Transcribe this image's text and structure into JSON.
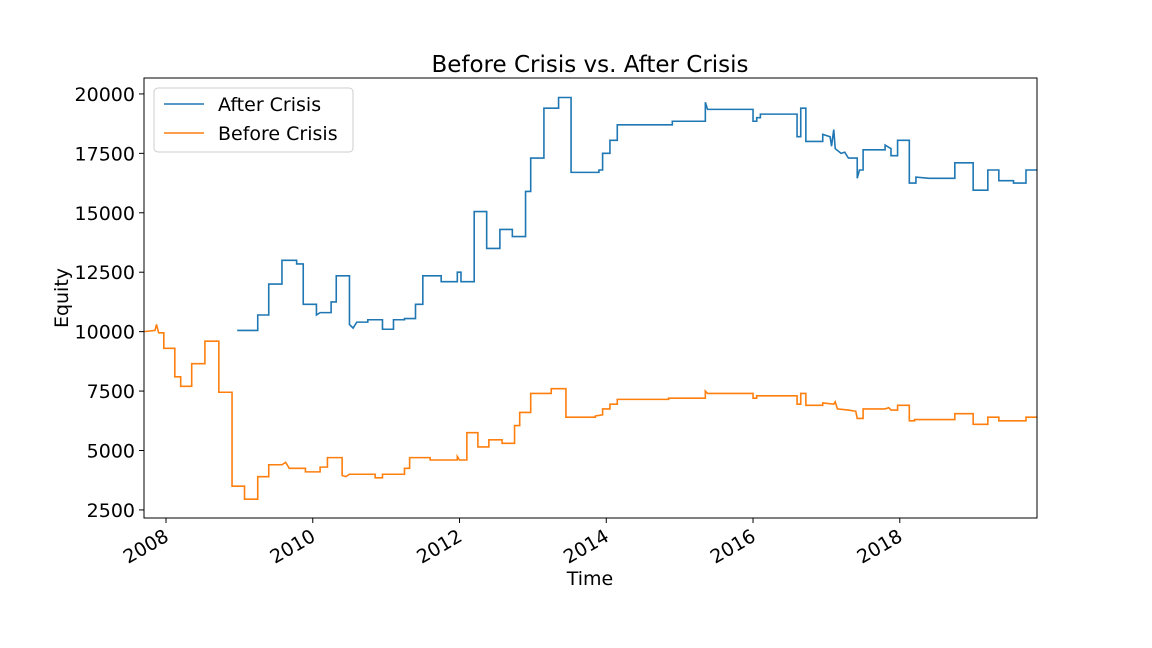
{
  "chart_data": {
    "type": "line",
    "title": "Before Crisis vs. After Crisis",
    "xlabel": "Time",
    "ylabel": "Equity",
    "xlim": [
      2007.7,
      2019.87
    ],
    "ylim": [
      2160,
      20670
    ],
    "xticks": [
      2008,
      2010,
      2012,
      2014,
      2016,
      2018
    ],
    "yticks": [
      2500,
      5000,
      7500,
      10000,
      12500,
      15000,
      17500,
      20000
    ],
    "grid": false,
    "legend": "upper left",
    "series": [
      {
        "name": "After Crisis",
        "color": "#1f77b4",
        "x": [
          2008.97,
          2009.25,
          2009.25,
          2009.4,
          2009.4,
          2009.58,
          2009.58,
          2009.78,
          2009.78,
          2009.87,
          2009.87,
          2010.05,
          2010.05,
          2010.1,
          2010.25,
          2010.25,
          2010.32,
          2010.32,
          2010.5,
          2010.5,
          2010.55,
          2010.6,
          2010.75,
          2010.75,
          2010.95,
          2010.95,
          2011.1,
          2011.1,
          2011.25,
          2011.25,
          2011.4,
          2011.4,
          2011.5,
          2011.5,
          2011.75,
          2011.75,
          2011.97,
          2011.97,
          2012.02,
          2012.02,
          2012.2,
          2012.2,
          2012.37,
          2012.37,
          2012.55,
          2012.55,
          2012.72,
          2012.72,
          2012.9,
          2012.9,
          2012.97,
          2012.97,
          2013.15,
          2013.15,
          2013.35,
          2013.35,
          2013.52,
          2013.52,
          2013.9,
          2013.9,
          2013.95,
          2013.95,
          2014.05,
          2014.05,
          2014.15,
          2014.15,
          2014.9,
          2014.9,
          2015.35,
          2015.35,
          2015.38,
          2016.0,
          2016.0,
          2016.05,
          2016.05,
          2016.1,
          2016.1,
          2016.6,
          2016.6,
          2016.65,
          2016.65,
          2016.72,
          2016.72,
          2016.95,
          2016.95,
          2017.05,
          2017.07,
          2017.1,
          2017.12,
          2017.2,
          2017.25,
          2017.3,
          2017.42,
          2017.42,
          2017.45,
          2017.5,
          2017.5,
          2017.8,
          2017.8,
          2017.88,
          2017.88,
          2017.97,
          2017.97,
          2018.13,
          2018.13,
          2018.22,
          2018.22,
          2018.4,
          2018.75,
          2018.75,
          2019.0,
          2019.0,
          2019.2,
          2019.2,
          2019.35,
          2019.35,
          2019.55,
          2019.55,
          2019.72,
          2019.72,
          2019.87
        ],
        "values": [
          10050,
          10050,
          10700,
          10700,
          12000,
          12000,
          13000,
          13000,
          12850,
          12850,
          11150,
          11150,
          10700,
          10800,
          10800,
          11250,
          11250,
          12350,
          12350,
          10300,
          10150,
          10400,
          10400,
          10500,
          10500,
          10100,
          10100,
          10500,
          10500,
          10550,
          10550,
          11150,
          11150,
          12350,
          12350,
          12100,
          12100,
          12500,
          12500,
          12100,
          12100,
          15050,
          15050,
          13500,
          13500,
          14300,
          14300,
          14000,
          14000,
          15900,
          15900,
          17300,
          17300,
          19400,
          19400,
          19850,
          19850,
          16700,
          16700,
          16800,
          16800,
          17500,
          17500,
          18050,
          18050,
          18700,
          18700,
          18850,
          18850,
          19650,
          19350,
          19350,
          18850,
          18850,
          19000,
          19000,
          19150,
          19150,
          18200,
          18200,
          19400,
          19400,
          18000,
          18000,
          18300,
          18200,
          17800,
          18500,
          17700,
          17500,
          17550,
          17300,
          17300,
          16450,
          16800,
          16800,
          17650,
          17650,
          17850,
          17700,
          17400,
          17400,
          18050,
          18050,
          16250,
          16250,
          16500,
          16450,
          16450,
          17100,
          17100,
          15950,
          15950,
          16800,
          16800,
          16350,
          16350,
          16250,
          16250,
          16800,
          16800
        ]
      },
      {
        "name": "Before Crisis",
        "color": "#ff7f0e",
        "x": [
          2007.7,
          2007.85,
          2007.87,
          2007.9,
          2007.97,
          2007.97,
          2008.12,
          2008.12,
          2008.2,
          2008.2,
          2008.35,
          2008.35,
          2008.53,
          2008.53,
          2008.72,
          2008.72,
          2008.9,
          2008.9,
          2009.07,
          2009.07,
          2009.25,
          2009.25,
          2009.4,
          2009.4,
          2009.58,
          2009.63,
          2009.68,
          2009.9,
          2009.9,
          2010.1,
          2010.1,
          2010.2,
          2010.2,
          2010.4,
          2010.4,
          2010.45,
          2010.5,
          2010.85,
          2010.85,
          2010.95,
          2010.95,
          2011.25,
          2011.25,
          2011.32,
          2011.32,
          2011.6,
          2011.6,
          2011.97,
          2011.97,
          2012.0,
          2012.1,
          2012.1,
          2012.25,
          2012.25,
          2012.4,
          2012.4,
          2012.58,
          2012.58,
          2012.75,
          2012.75,
          2012.82,
          2012.82,
          2012.97,
          2012.97,
          2013.25,
          2013.25,
          2013.45,
          2013.45,
          2013.85,
          2013.85,
          2013.95,
          2013.95,
          2014.05,
          2014.05,
          2014.15,
          2014.15,
          2014.85,
          2014.85,
          2015.35,
          2015.35,
          2015.38,
          2016.0,
          2016.0,
          2016.05,
          2016.05,
          2016.6,
          2016.6,
          2016.65,
          2016.65,
          2016.72,
          2016.72,
          2016.95,
          2016.95,
          2017.1,
          2017.12,
          2017.15,
          2017.3,
          2017.4,
          2017.42,
          2017.5,
          2017.5,
          2017.8,
          2017.85,
          2017.88,
          2017.97,
          2017.97,
          2018.13,
          2018.13,
          2018.2,
          2018.2,
          2018.75,
          2018.75,
          2019.0,
          2019.0,
          2019.2,
          2019.2,
          2019.35,
          2019.35,
          2019.72,
          2019.72,
          2019.87
        ],
        "values": [
          10000,
          10050,
          10300,
          9950,
          9950,
          9300,
          9300,
          8100,
          8100,
          7700,
          7700,
          8650,
          8650,
          9600,
          9600,
          7450,
          7450,
          3500,
          3500,
          2950,
          2950,
          3900,
          3900,
          4400,
          4400,
          4500,
          4250,
          4250,
          4100,
          4100,
          4300,
          4300,
          4700,
          4700,
          3950,
          3900,
          4000,
          4000,
          3850,
          3850,
          4000,
          4000,
          4250,
          4250,
          4700,
          4700,
          4600,
          4600,
          4750,
          4600,
          4600,
          5750,
          5750,
          5150,
          5150,
          5450,
          5450,
          5300,
          5300,
          6050,
          6050,
          6600,
          6600,
          7400,
          7400,
          7600,
          7600,
          6400,
          6400,
          6450,
          6500,
          6750,
          6750,
          6950,
          6950,
          7150,
          7150,
          7200,
          7200,
          7500,
          7400,
          7400,
          7200,
          7200,
          7300,
          7300,
          6950,
          6950,
          7400,
          7400,
          6900,
          6900,
          7000,
          6950,
          7050,
          6750,
          6700,
          6650,
          6350,
          6350,
          6750,
          6750,
          6800,
          6700,
          6700,
          6900,
          6900,
          6250,
          6250,
          6300,
          6300,
          6550,
          6550,
          6100,
          6100,
          6400,
          6400,
          6250,
          6250,
          6400,
          6400
        ]
      }
    ]
  }
}
